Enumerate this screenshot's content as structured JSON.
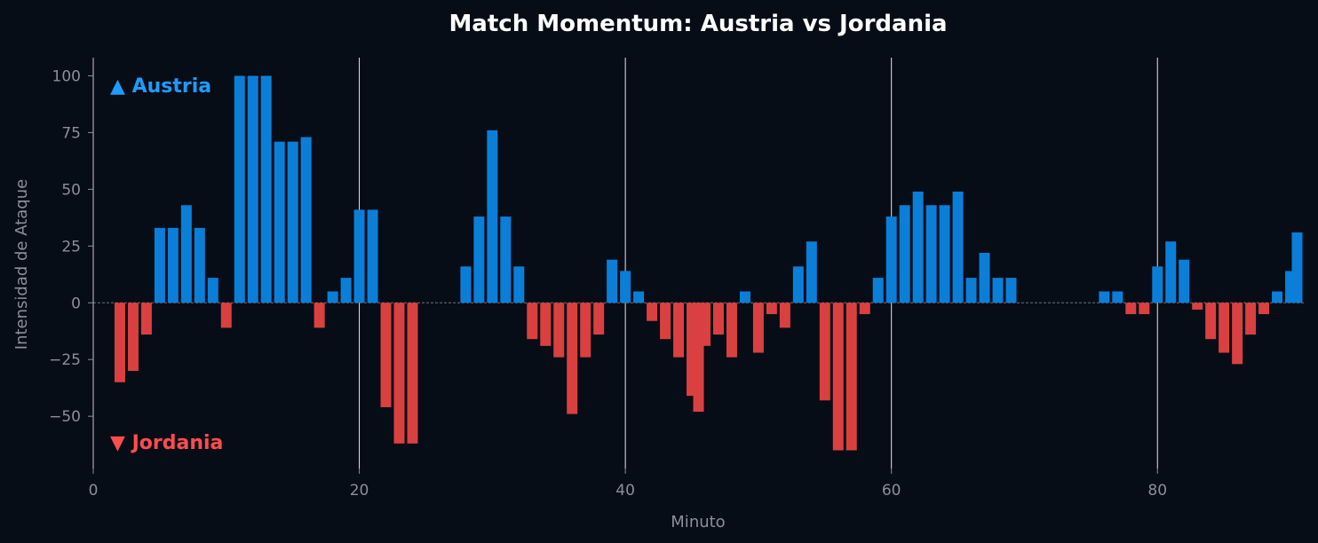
{
  "chart_data": {
    "type": "bar",
    "title": "Match Momentum: Austria vs Jordania",
    "xlabel": "Minuto",
    "ylabel": "Intensidad de Ataque",
    "xlim": [
      0,
      91
    ],
    "ylim": [
      -73,
      108
    ],
    "xticks": [
      0,
      20,
      40,
      60,
      80
    ],
    "yticks": [
      -50,
      -25,
      0,
      25,
      50,
      75,
      100
    ],
    "vlines": [
      20,
      40,
      60,
      80
    ],
    "grid": false,
    "annotations": {
      "positive": "▲ Austria",
      "negative": "▼ Jordania"
    },
    "colors": {
      "positive": "#0b7fd8",
      "negative": "#db4040",
      "positive_text": "#1f9bff",
      "negative_text": "#ff4d4d",
      "background": "#070d17"
    },
    "x": [
      2,
      3,
      4,
      5,
      6,
      7,
      8,
      9,
      10,
      11,
      12,
      13,
      14,
      15,
      16,
      17,
      18,
      19,
      20,
      21,
      22,
      23,
      24,
      28,
      29,
      30,
      31,
      32,
      33,
      34,
      35,
      36,
      37,
      38,
      39,
      40,
      41,
      42,
      43,
      44,
      45,
      45.5,
      46,
      47,
      48,
      49,
      50,
      51,
      52,
      53,
      54,
      55,
      56,
      57,
      58,
      59,
      60,
      61,
      62,
      63,
      64,
      65,
      66,
      67,
      68,
      69,
      76,
      77,
      78,
      79,
      80,
      81,
      82,
      83,
      84,
      85,
      86,
      87,
      88,
      89,
      90,
      90.5
    ],
    "values": [
      -35,
      -30,
      -14,
      33,
      33,
      43,
      33,
      11,
      -11,
      100,
      100,
      100,
      71,
      71,
      73,
      -11,
      5,
      11,
      41,
      41,
      -46,
      -62,
      -62,
      16,
      38,
      76,
      38,
      16,
      -16,
      -19,
      -24,
      -49,
      -24,
      -14,
      19,
      14,
      5,
      -8,
      -16,
      -24,
      -41,
      -48,
      -19,
      -14,
      -24,
      5,
      -22,
      -5,
      -11,
      16,
      27,
      -43,
      -65,
      -65,
      -5,
      11,
      38,
      43,
      49,
      43,
      43,
      49,
      11,
      22,
      11,
      11,
      5,
      5,
      -5,
      -5,
      16,
      27,
      19,
      -3,
      -16,
      -22,
      -27,
      -14,
      -5,
      5,
      14,
      31
    ]
  }
}
